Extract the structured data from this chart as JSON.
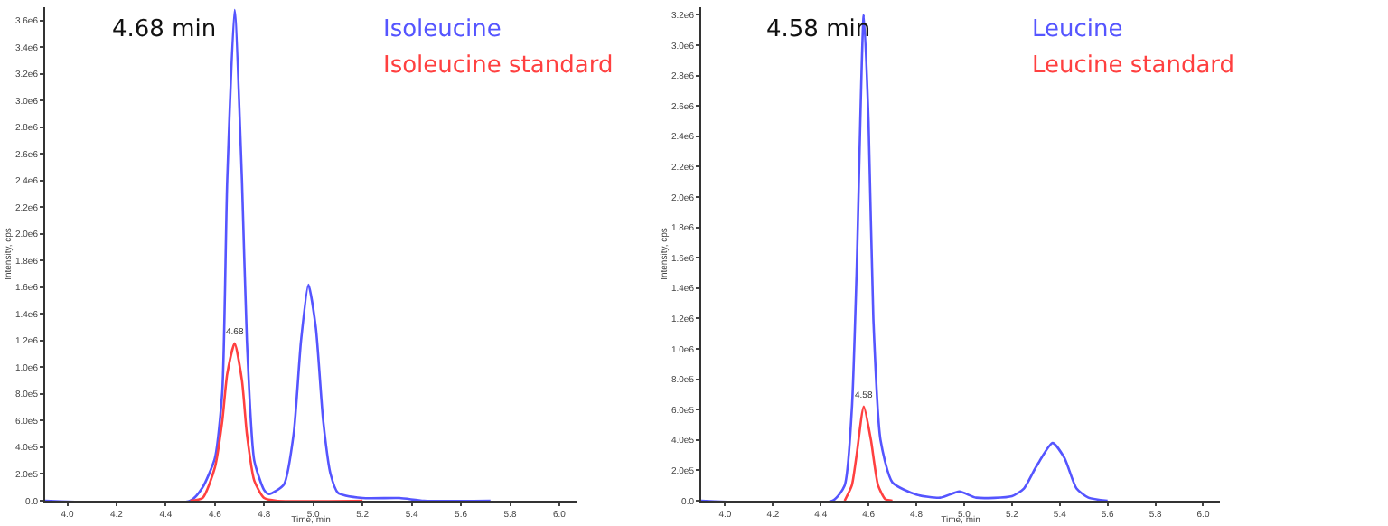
{
  "chart_data": [
    {
      "type": "line",
      "xlabel": "Time, min",
      "ylabel": "Intensity, cps",
      "xlim": [
        3.91,
        6.07
      ],
      "ylim": [
        0,
        3700000
      ],
      "xticks": [
        {
          "value": 4.0,
          "label": "4.0"
        },
        {
          "value": 4.2,
          "label": "4.2"
        },
        {
          "value": 4.4,
          "label": "4.4"
        },
        {
          "value": 4.6,
          "label": "4.6"
        },
        {
          "value": 4.8,
          "label": "4.8"
        },
        {
          "value": 5.0,
          "label": "5.0"
        },
        {
          "value": 5.2,
          "label": "5.2"
        },
        {
          "value": 5.4,
          "label": "5.4"
        },
        {
          "value": 5.6,
          "label": "5.6"
        },
        {
          "value": 5.8,
          "label": "5.8"
        },
        {
          "value": 6.0,
          "label": "6.0"
        }
      ],
      "yticks": [
        {
          "value": 0,
          "label": "0.0"
        },
        {
          "value": 200000,
          "label": "2.0e5"
        },
        {
          "value": 400000,
          "label": "4.0e5"
        },
        {
          "value": 600000,
          "label": "6.0e5"
        },
        {
          "value": 800000,
          "label": "8.0e5"
        },
        {
          "value": 1000000,
          "label": "1.0e6"
        },
        {
          "value": 1200000,
          "label": "1.2e6"
        },
        {
          "value": 1400000,
          "label": "1.4e6"
        },
        {
          "value": 1600000,
          "label": "1.6e6"
        },
        {
          "value": 1800000,
          "label": "1.8e6"
        },
        {
          "value": 2000000,
          "label": "2.0e6"
        },
        {
          "value": 2200000,
          "label": "2.2e6"
        },
        {
          "value": 2400000,
          "label": "2.4e6"
        },
        {
          "value": 2600000,
          "label": "2.6e6"
        },
        {
          "value": 2800000,
          "label": "2.8e6"
        },
        {
          "value": 3000000,
          "label": "3.0e6"
        },
        {
          "value": 3200000,
          "label": "3.2e6"
        },
        {
          "value": 3400000,
          "label": "3.4e6"
        },
        {
          "value": 3600000,
          "label": "3.6e6"
        }
      ],
      "grid": false,
      "legend": false,
      "marker": "none",
      "line_style": "solid",
      "series": [
        {
          "name": "Isoleucine",
          "color": "#5555ff",
          "x": [
            3.91,
            4.5,
            4.55,
            4.6,
            4.63,
            4.65,
            4.68,
            4.71,
            4.73,
            4.76,
            4.8,
            4.82,
            4.88,
            4.92,
            4.95,
            4.98,
            5.01,
            5.04,
            5.07,
            5.1,
            5.2,
            5.35,
            5.45,
            5.72
          ],
          "values": [
            0,
            0,
            100000,
            320000,
            820000,
            2400000,
            3680000,
            2400000,
            1200000,
            300000,
            80000,
            50000,
            120000,
            500000,
            1200000,
            1620000,
            1300000,
            600000,
            200000,
            60000,
            20000,
            20000,
            0,
            0
          ]
        },
        {
          "name": "Isoleucine standard",
          "color": "#ff4040",
          "x": [
            4.5,
            4.55,
            4.6,
            4.63,
            4.65,
            4.68,
            4.71,
            4.73,
            4.76,
            4.8,
            4.85,
            5.2
          ],
          "values": [
            0,
            20000,
            250000,
            600000,
            950000,
            1180000,
            900000,
            500000,
            150000,
            20000,
            0,
            0
          ]
        }
      ],
      "annotations": [
        "4.68 min",
        {
          "text": "4.68",
          "x": 4.68,
          "y": 1180000
        }
      ]
    },
    {
      "type": "line",
      "xlabel": "Time, min",
      "ylabel": "Intensity, cps",
      "xlim": [
        3.9,
        6.07
      ],
      "ylim": [
        0,
        3250000
      ],
      "xticks": [
        {
          "value": 4.0,
          "label": "4.0"
        },
        {
          "value": 4.2,
          "label": "4.2"
        },
        {
          "value": 4.4,
          "label": "4.4"
        },
        {
          "value": 4.6,
          "label": "4.6"
        },
        {
          "value": 4.8,
          "label": "4.8"
        },
        {
          "value": 5.0,
          "label": "5.0"
        },
        {
          "value": 5.2,
          "label": "5.2"
        },
        {
          "value": 5.4,
          "label": "5.4"
        },
        {
          "value": 5.6,
          "label": "5.6"
        },
        {
          "value": 5.8,
          "label": "5.8"
        },
        {
          "value": 6.0,
          "label": "6.0"
        }
      ],
      "yticks": [
        {
          "value": 0,
          "label": "0.0"
        },
        {
          "value": 200000,
          "label": "2.0e5"
        },
        {
          "value": 400000,
          "label": "4.0e5"
        },
        {
          "value": 600000,
          "label": "6.0e5"
        },
        {
          "value": 800000,
          "label": "8.0e5"
        },
        {
          "value": 1000000,
          "label": "1.0e6"
        },
        {
          "value": 1200000,
          "label": "1.2e6"
        },
        {
          "value": 1400000,
          "label": "1.4e6"
        },
        {
          "value": 1600000,
          "label": "1.6e6"
        },
        {
          "value": 1800000,
          "label": "1.8e6"
        },
        {
          "value": 2000000,
          "label": "2.0e6"
        },
        {
          "value": 2200000,
          "label": "2.2e6"
        },
        {
          "value": 2400000,
          "label": "2.4e6"
        },
        {
          "value": 2600000,
          "label": "2.6e6"
        },
        {
          "value": 2800000,
          "label": "2.8e6"
        },
        {
          "value": 3000000,
          "label": "3.0e6"
        },
        {
          "value": 3200000,
          "label": "3.2e6"
        }
      ],
      "grid": false,
      "legend": false,
      "marker": "none",
      "line_style": "solid",
      "series": [
        {
          "name": "Leucine",
          "color": "#5555ff",
          "x": [
            3.9,
            4.45,
            4.5,
            4.53,
            4.55,
            4.58,
            4.6,
            4.62,
            4.65,
            4.7,
            4.8,
            4.9,
            4.98,
            5.05,
            5.2,
            5.25,
            5.3,
            5.37,
            5.42,
            5.47,
            5.52,
            5.6
          ],
          "values": [
            0,
            0,
            100000,
            600000,
            1500000,
            3200000,
            2500000,
            1200000,
            400000,
            120000,
            40000,
            20000,
            60000,
            20000,
            30000,
            80000,
            220000,
            380000,
            280000,
            80000,
            20000,
            0
          ]
        },
        {
          "name": "Leucine standard",
          "color": "#ff4040",
          "x": [
            4.5,
            4.53,
            4.55,
            4.58,
            4.61,
            4.64,
            4.67,
            4.7
          ],
          "values": [
            0,
            100000,
            300000,
            620000,
            400000,
            100000,
            10000,
            0
          ]
        }
      ],
      "annotations": [
        "4.58 min",
        {
          "text": "4.58",
          "x": 4.58,
          "y": 620000
        }
      ]
    }
  ]
}
